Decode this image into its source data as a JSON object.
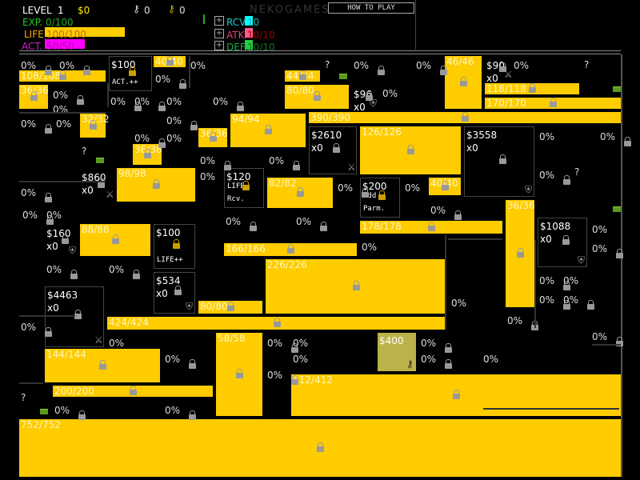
{
  "header": {
    "level_label": "LEVEL",
    "level": "1",
    "money": "$0",
    "keys_silver": "0",
    "keys_gold": "0",
    "brand": "NEKOGAMES",
    "how_to_play": "HOW TO PLAY",
    "exp_label": "EXP.",
    "exp": "0/100",
    "life_label": "LIFE",
    "life": "100/100",
    "life_fill": 1.0,
    "act_label": "ACT.",
    "act": "50/50",
    "act_fill": 1.0,
    "rcv_label": "RCV.",
    "rcv": "10",
    "atk_label": "ATK.",
    "atk": "10/10",
    "def_label": "DEF.",
    "def": "10/10",
    "colors": {
      "exp": "#22cc22",
      "life": "#ffcc00",
      "act": "#ff00ff",
      "rcv": "#00ffff",
      "atk": "#ff5a8a",
      "def": "#22cc44"
    }
  },
  "blocks": [
    "108/108",
    "40/40",
    "46/46",
    "44/44",
    "36/36",
    "80/80",
    "118/118",
    "170/170",
    "390/390",
    "32/32",
    "94/94",
    "36/36",
    "36/36",
    "126/126",
    "98/98",
    "82/82",
    "40/40",
    "36/36",
    "178/178",
    "88/88",
    "166/166",
    "226/226",
    "80/80",
    "424/424",
    "58/58",
    "144/144",
    "412/412",
    "200/200",
    "752/752"
  ],
  "shops": [
    {
      "price": "$100",
      "label": "ACT.++"
    },
    {
      "price": "$96",
      "count": "x0"
    },
    {
      "price": "$2610",
      "count": "x0"
    },
    {
      "price": "$3558",
      "count": "x0"
    },
    {
      "price": "$860",
      "count": "x0"
    },
    {
      "price": "$120",
      "label": "LIFE Rcv."
    },
    {
      "price": "$200",
      "label": "Add Parm."
    },
    {
      "price": "$90",
      "count": "x0"
    },
    {
      "price": "$160",
      "count": "x0"
    },
    {
      "price": "$100",
      "label": "LIFE++"
    },
    {
      "price": "$534",
      "count": "x0"
    },
    {
      "price": "$4463",
      "count": "x0"
    },
    {
      "price": "$1088",
      "count": "x0"
    },
    {
      "price": "$400"
    }
  ],
  "unknown": [
    "?",
    "?",
    "?",
    "?",
    "?"
  ],
  "percents": [
    "0%",
    "0%",
    "0%",
    "0%",
    "0%",
    "0%",
    "0%",
    "0%",
    "0%",
    "0%",
    "0%",
    "0%",
    "0%",
    "0%",
    "0%",
    "0%",
    "0%",
    "0%",
    "0%",
    "0%",
    "0%",
    "0%",
    "0%",
    "0%",
    "0%",
    "0%",
    "0%",
    "0%",
    "0%",
    "0%",
    "0%",
    "0%",
    "0%",
    "0%",
    "0%",
    "0%",
    "0%",
    "0%",
    "0%",
    "0%",
    "0%",
    "0%",
    "0%",
    "0%",
    "0%",
    "0%",
    "0%",
    "0%",
    "0%",
    "0%",
    "0%",
    "0%",
    "0%",
    "0%",
    "0%",
    "0%",
    "0%"
  ]
}
